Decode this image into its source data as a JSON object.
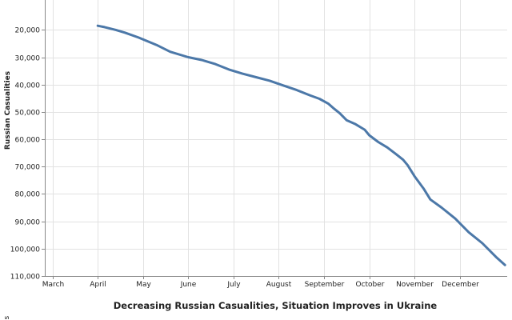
{
  "chart_data": {
    "type": "line",
    "title": "Decreasing Russian Casualities, Situation Improves in Ukraine",
    "xlabel": "",
    "ylabel": "Russian Casualities",
    "y_reversed": true,
    "ylim": [
      0,
      110000
    ],
    "visible_y_ticks": [
      20000,
      30000,
      40000,
      50000,
      60000,
      70000,
      80000,
      90000,
      100000,
      110000
    ],
    "y_tick_labels": [
      "20,000",
      "30,000",
      "40,000",
      "50,000",
      "60,000",
      "70,000",
      "80,000",
      "90,000",
      "100,000",
      "110,000"
    ],
    "x_ticks": [
      "March",
      "April",
      "May",
      "June",
      "July",
      "August",
      "September",
      "October",
      "November",
      "December"
    ],
    "x_tick_month_index": [
      2,
      3,
      4,
      5,
      6,
      7,
      8,
      9,
      10,
      11
    ],
    "xlim_month_index": [
      1.83,
      12.05
    ],
    "series": [
      {
        "name": "Russian Casualities",
        "color": "#4c78a8",
        "x_month_index": [
          3.0,
          3.15,
          3.4,
          3.6,
          3.9,
          4.3,
          4.6,
          5.0,
          5.3,
          5.6,
          5.9,
          6.2,
          6.5,
          6.8,
          7.1,
          7.4,
          7.7,
          7.9,
          8.1,
          8.2,
          8.35,
          8.5,
          8.7,
          8.9,
          9.0,
          9.2,
          9.4,
          9.6,
          9.75,
          9.85,
          10.0,
          10.2,
          10.35,
          10.6,
          10.9,
          11.2,
          11.5,
          11.8,
          12.0
        ],
        "y_values": [
          18500,
          19000,
          20000,
          21000,
          22800,
          25500,
          28000,
          30000,
          31000,
          32500,
          34500,
          36000,
          37300,
          38600,
          40300,
          42000,
          44000,
          45200,
          47000,
          48500,
          50500,
          53000,
          54500,
          56500,
          58500,
          61000,
          63000,
          65500,
          67500,
          69500,
          73500,
          78000,
          82000,
          85000,
          89000,
          94000,
          98000,
          103000,
          106000
        ]
      }
    ]
  }
}
